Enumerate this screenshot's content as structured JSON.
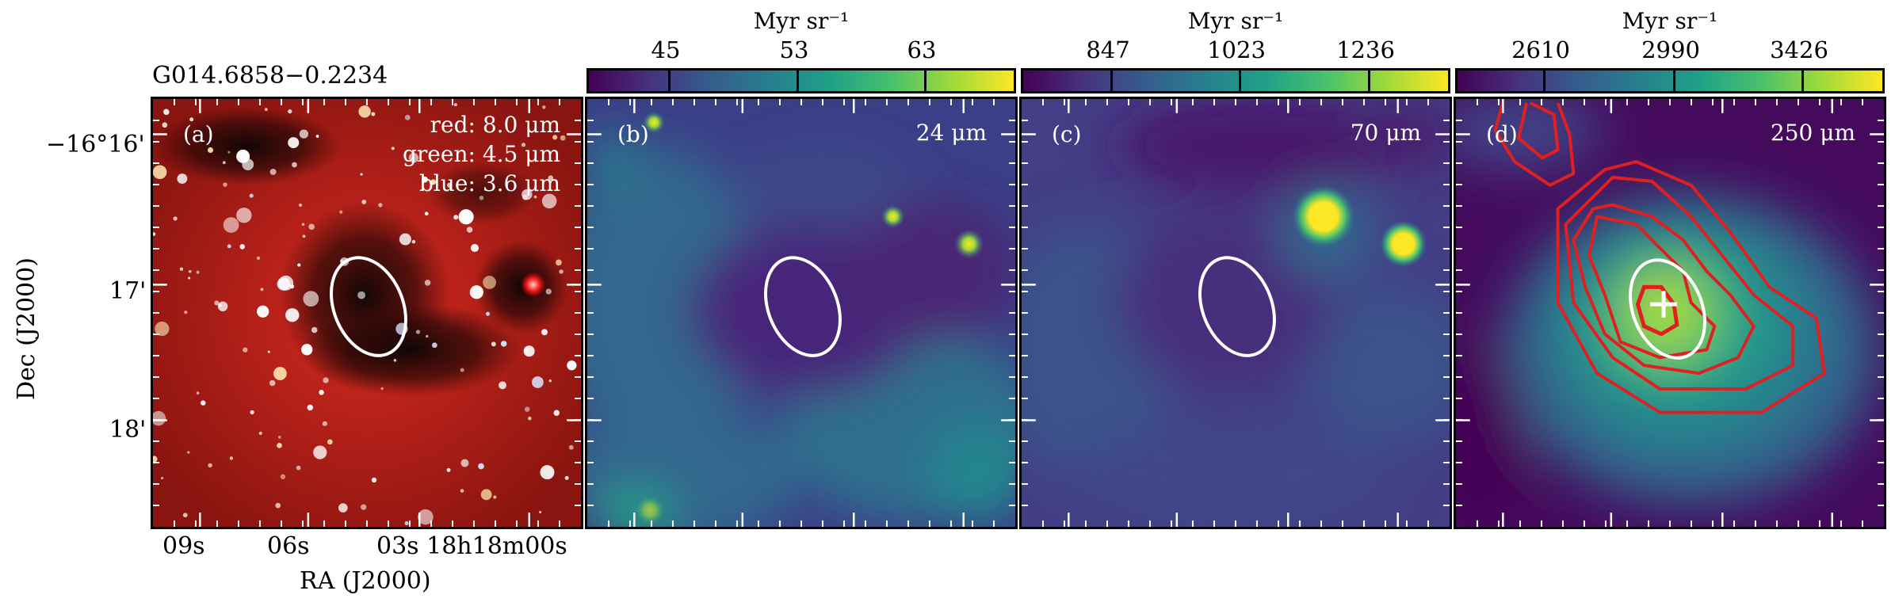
{
  "source_name": "G014.6858−0.2234",
  "axes": {
    "ylabel": "Dec (J2000)",
    "xlabel": "RA (J2000)",
    "dec_ticks": [
      "−16°16'",
      "17'",
      "18'"
    ],
    "ra_ticks": [
      "09s",
      "06s",
      "03s 18h18m00s"
    ]
  },
  "panels": [
    {
      "id": "a",
      "tag": "(a)",
      "legend": [
        "red: 8.0 μm",
        "green: 4.5 μm",
        "blue: 3.6 μm"
      ],
      "colorbar": null
    },
    {
      "id": "b",
      "tag": "(b)",
      "wavelength": "24 μm",
      "colorbar": {
        "unit": "Myr sr⁻¹",
        "ticks": [
          "45",
          "53",
          "63"
        ]
      }
    },
    {
      "id": "c",
      "tag": "(c)",
      "wavelength": "70 μm",
      "colorbar": {
        "unit": "Myr sr⁻¹",
        "ticks": [
          "847",
          "1023",
          "1236"
        ]
      }
    },
    {
      "id": "d",
      "tag": "(d)",
      "wavelength": "250 μm",
      "colorbar": {
        "unit": "Myr sr⁻¹",
        "ticks": [
          "2610",
          "2990",
          "3426"
        ]
      }
    }
  ],
  "colors": {
    "ellipse": "#ffffff",
    "contour": "#e02020",
    "viridis_low": "#440154",
    "viridis_high": "#fde725"
  }
}
